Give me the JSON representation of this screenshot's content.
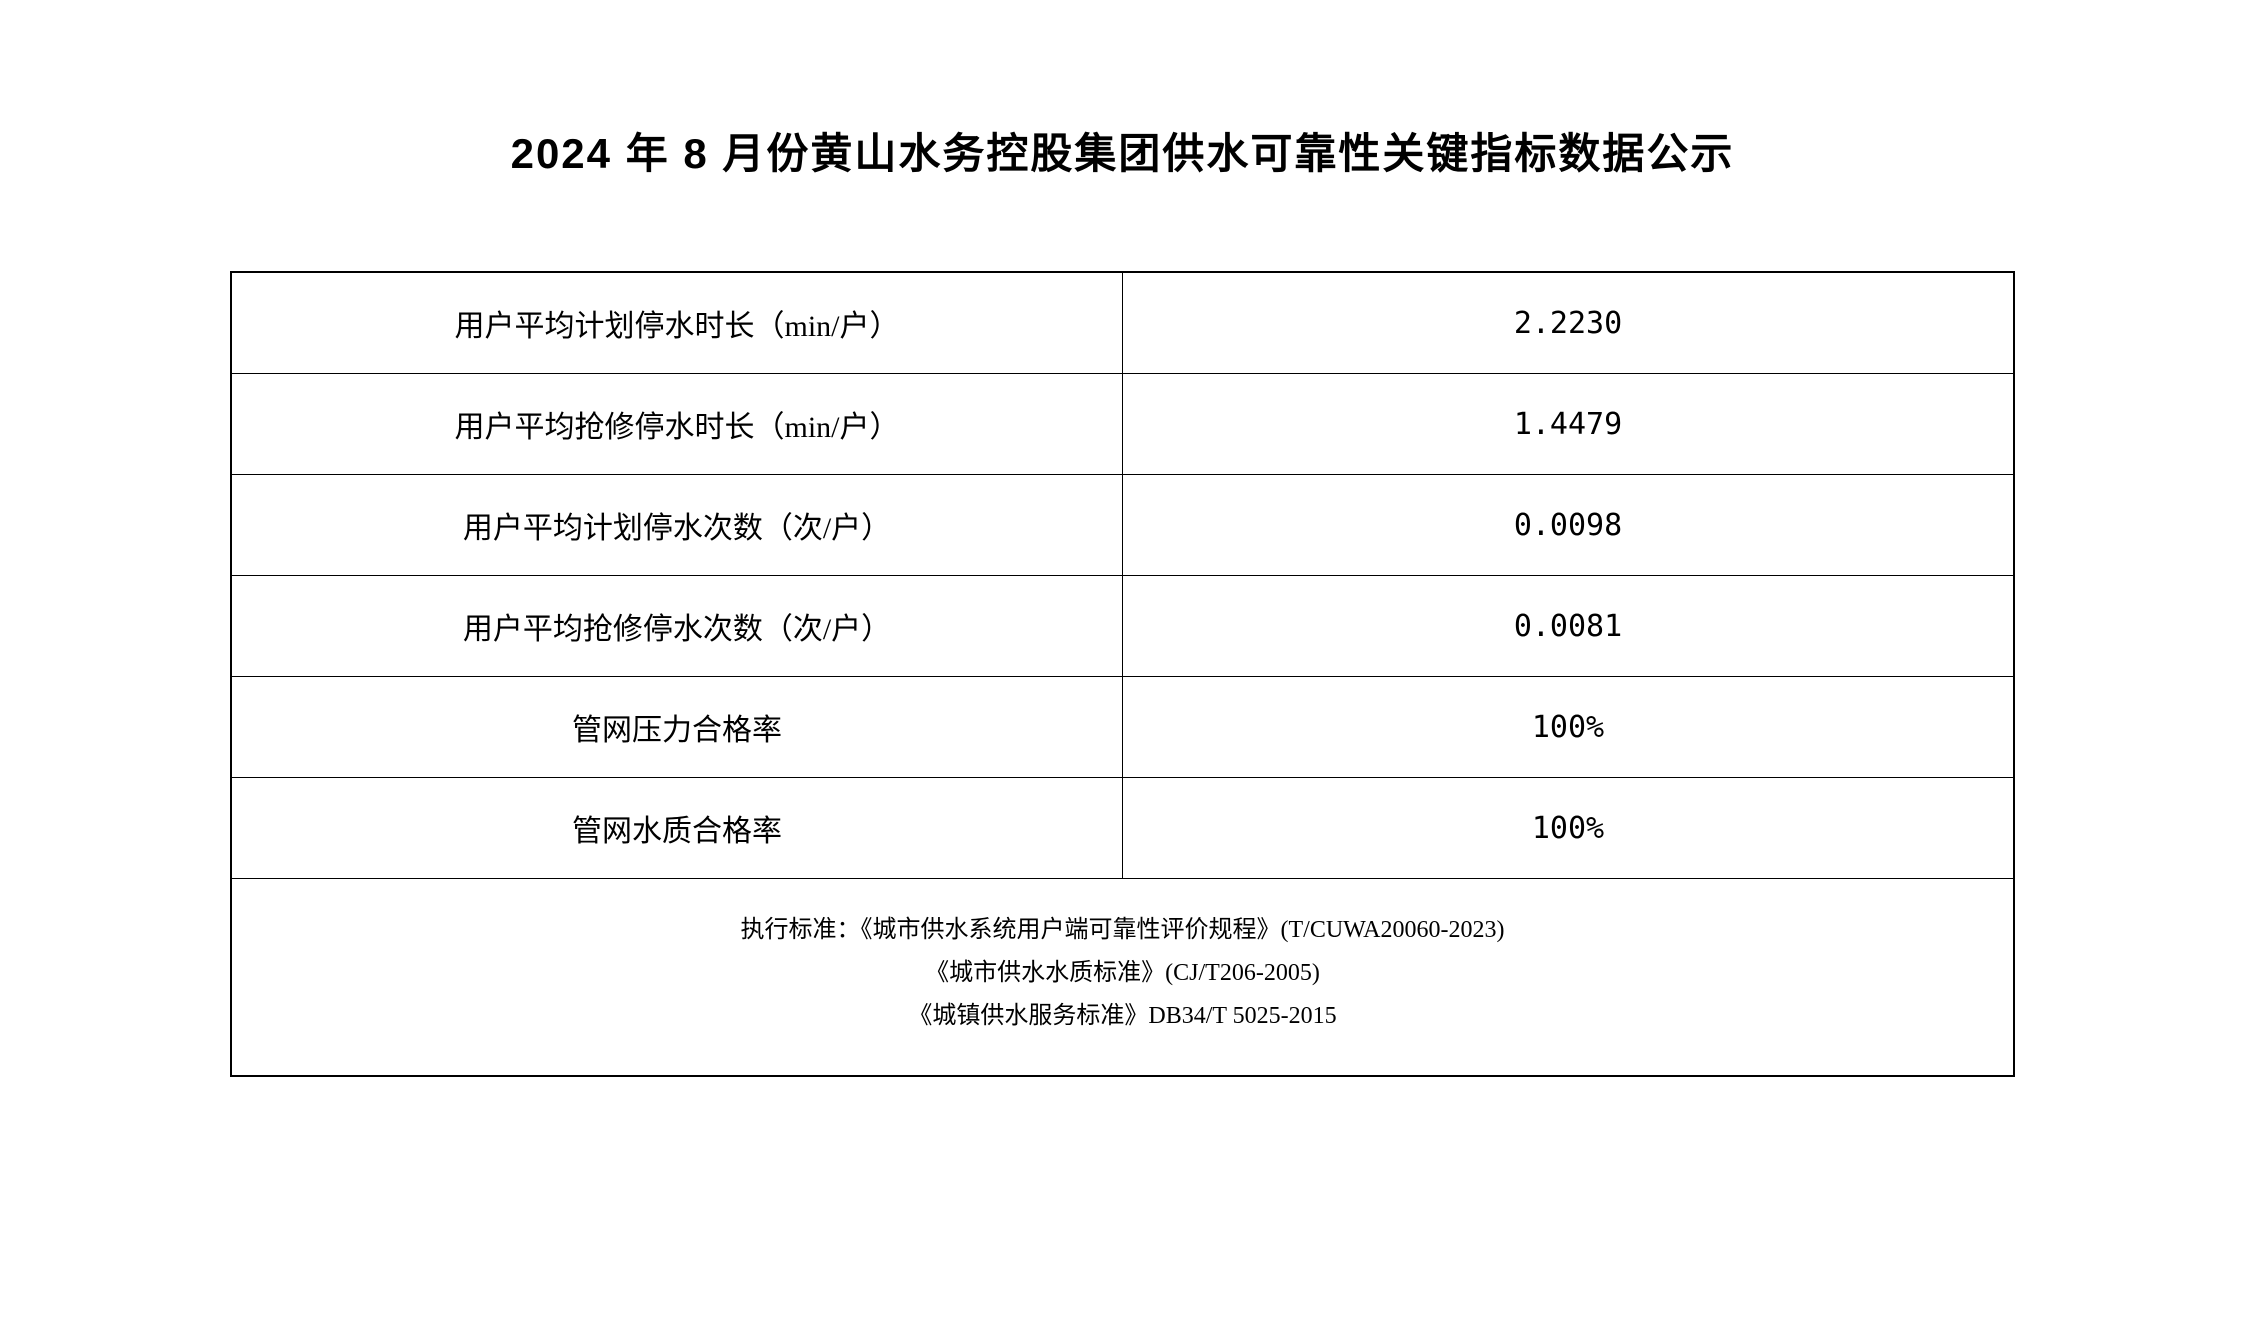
{
  "document": {
    "title": "2024 年 8 月份黄山水务控股集团供水可靠性关键指标数据公示",
    "title_fontsize": 42,
    "title_color": "#000000",
    "background_color": "#ffffff"
  },
  "table": {
    "type": "table",
    "border_color": "#000000",
    "border_width": 1,
    "text_color": "#000000",
    "label_fontsize": 30,
    "value_fontsize": 30,
    "footer_fontsize": 24,
    "column_widths": [
      "50%",
      "50%"
    ],
    "rows": [
      {
        "label": "用户平均计划停水时长（min/户）",
        "value": "2.2230"
      },
      {
        "label": "用户平均抢修停水时长（min/户）",
        "value": "1.4479"
      },
      {
        "label": "用户平均计划停水次数（次/户）",
        "value": "0.0098"
      },
      {
        "label": "用户平均抢修停水次数（次/户）",
        "value": "0.0081"
      },
      {
        "label": "管网压力合格率",
        "value": "100%"
      },
      {
        "label": "管网水质合格率",
        "value": "100%"
      }
    ],
    "footer": {
      "line1": "执行标准：《城市供水系统用户端可靠性评价规程》(T/CUWA20060-2023)",
      "line2": "《城市供水水质标准》(CJ/T206-2005)",
      "line3": "《城镇供水服务标准》DB34/T 5025-2015"
    }
  }
}
